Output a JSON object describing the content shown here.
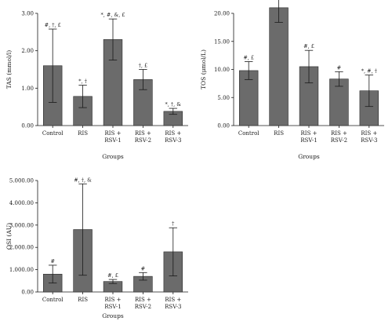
{
  "chart_data": [
    {
      "type": "bar",
      "ylabel": "TAS (mmol/l)",
      "xlabel": "Groups",
      "ylim": [
        0,
        3
      ],
      "yticks": [
        "0.00",
        "1.00",
        "2.00",
        "3.00"
      ],
      "categories": [
        [
          "Control"
        ],
        [
          "RIS"
        ],
        [
          "RIS +",
          "RSV-1"
        ],
        [
          "RIS +",
          "RSV-2"
        ],
        [
          "RIS +",
          "RSV-3"
        ]
      ],
      "values": [
        1.6,
        0.78,
        2.3,
        1.23,
        0.38
      ],
      "errors": [
        0.98,
        0.3,
        0.55,
        0.27,
        0.08
      ],
      "significance": [
        "#, †, £",
        "*, †",
        "*, #, &, £",
        "†, £",
        "*, †, &"
      ],
      "grid": false,
      "bar_color": "#6b6b6b"
    },
    {
      "type": "bar",
      "ylabel": "TOS (μmol/L)",
      "xlabel": "Groups",
      "ylim": [
        0,
        20
      ],
      "yticks": [
        "0.00",
        "5.00",
        "10.00",
        "15.00",
        "20.00"
      ],
      "categories": [
        [
          "Control"
        ],
        [
          "RIS"
        ],
        [
          "RIS +",
          "RSV-1"
        ],
        [
          "RIS +",
          "RSV-2"
        ],
        [
          "RIS +",
          "RSV-3"
        ]
      ],
      "values": [
        9.8,
        21.0,
        10.5,
        8.3,
        6.2
      ],
      "errors": [
        1.6,
        2.6,
        2.9,
        1.3,
        2.8
      ],
      "significance": [
        "#, £",
        "*, †, &, £",
        "#, £",
        "#",
        "*, #, †"
      ],
      "grid": false,
      "bar_color": "#6b6b6b"
    },
    {
      "type": "bar",
      "ylabel": "OSI (AU)",
      "xlabel": "Groups",
      "ylim": [
        0,
        5000
      ],
      "yticks": [
        "0.00",
        "1.000.00",
        "2.000.00",
        "3.000.00",
        "4.000.00",
        "5.000.00"
      ],
      "categories": [
        [
          "Control"
        ],
        [
          "RIS"
        ],
        [
          "RIS +",
          "RSV-1"
        ],
        [
          "RIS +",
          "RSV-2"
        ],
        [
          "RIS +",
          "RSV-3"
        ]
      ],
      "values": [
        800,
        2800,
        470,
        700,
        1800
      ],
      "errors": [
        400,
        2050,
        90,
        170,
        1080
      ],
      "significance": [
        "#",
        "#, †, &",
        "#, £",
        "#",
        "†"
      ],
      "grid": false,
      "bar_color": "#6b6b6b"
    }
  ]
}
